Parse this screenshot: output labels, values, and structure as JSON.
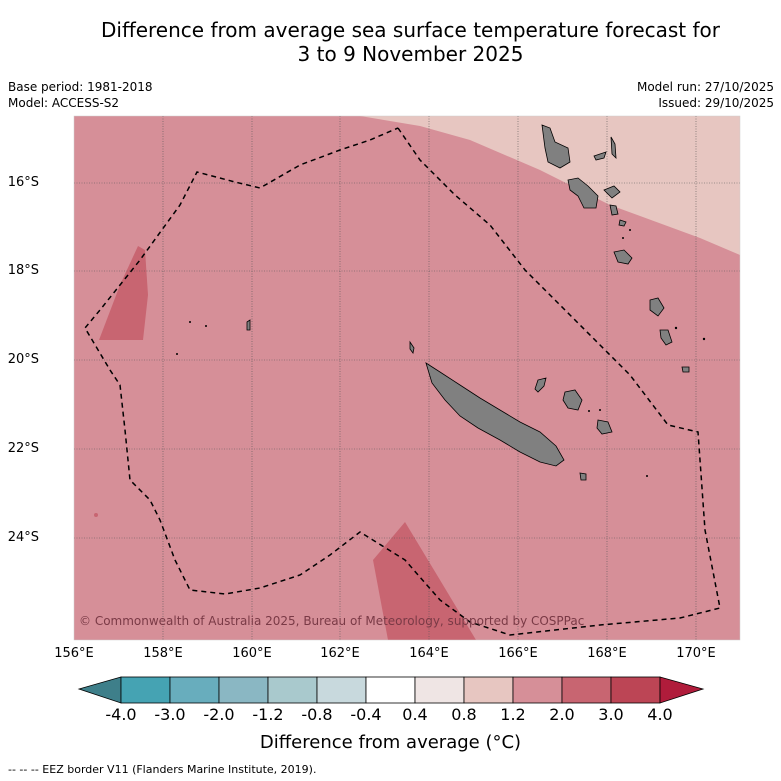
{
  "title_line1": "Difference from average sea surface temperature forecast for",
  "title_line2": "3 to 9 November 2025",
  "base_period": "Base period: 1981-2018",
  "model": "Model: ACCESS-S2",
  "model_run": "Model run: 27/10/2025",
  "issued": "Issued: 29/10/2025",
  "lat_labels": [
    "16°S",
    "18°S",
    "20°S",
    "22°S",
    "24°S"
  ],
  "lon_labels": [
    "156°E",
    "158°E",
    "160°E",
    "162°E",
    "164°E",
    "166°E",
    "168°E",
    "170°E"
  ],
  "copyright": "© Commonwealth of Australia 2025, Bureau of Meteorology, supported by COSPPac",
  "colorbar": {
    "title": "Difference from average (°C)",
    "tick_labels": [
      "-4.0",
      "-3.0",
      "-2.0",
      "-1.2",
      "-0.8",
      "-0.4",
      "0.4",
      "0.8",
      "1.2",
      "2.0",
      "3.0",
      "4.0"
    ],
    "colors": [
      "#3e7f8a",
      "#45a3b3",
      "#68adbd",
      "#8ab7c3",
      "#a9c9cd",
      "#c8d9dd",
      "#ffffff",
      "#efe5e4",
      "#e7c6c1",
      "#d68f98",
      "#c86571",
      "#bc4555",
      "#b01c3b"
    ]
  },
  "eez_note": "--  --  -- EEZ border V11 (Flanders Marine Institute, 2019).",
  "regions": {
    "background": "#d68f98",
    "northeast_band": "#e7c6c1",
    "warm_patches": "#c86571",
    "land": "#808080"
  }
}
